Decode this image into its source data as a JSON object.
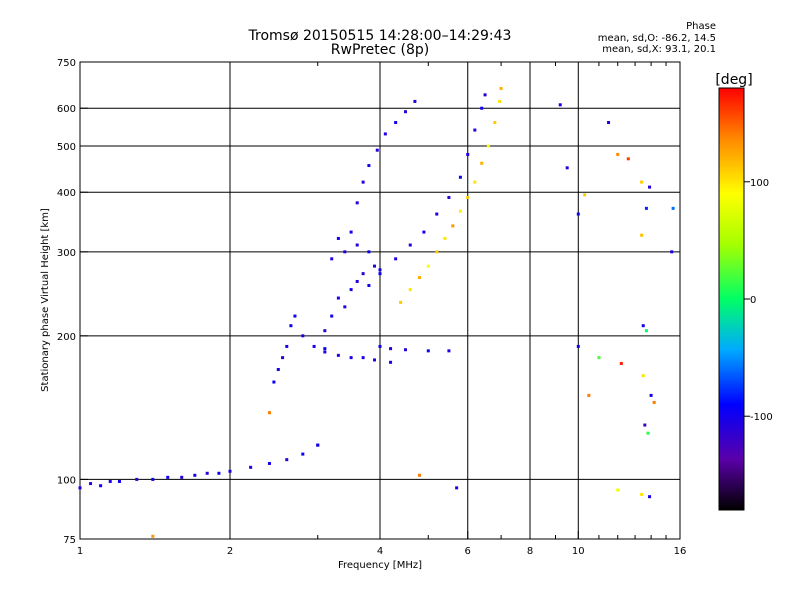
{
  "header": {
    "title_line1": "Tromsø 20150515 14:28:00–14:29:43",
    "title_line2": "RwPretec (8p)",
    "phase_heading": "Phase",
    "phase_line_o": "mean, sd,O: -86.2, 14.5",
    "phase_line_x": "mean, sd,X:  93.1, 20.1"
  },
  "colorbar": {
    "label": "[deg]",
    "ticks": [
      {
        "value": 100,
        "label": "100"
      },
      {
        "value": 0,
        "label": "0"
      },
      {
        "value": -100,
        "label": "-100"
      }
    ],
    "range": [
      -180,
      180
    ]
  },
  "chart_data": {
    "type": "scatter",
    "title": "Tromsø 20150515 14:28:00–14:29:43",
    "subtitle": "RwPretec (8p)",
    "xlabel": "Frequency [MHz]",
    "ylabel": "Stationary phase Virtual Height [km]",
    "x_scale": "log",
    "y_scale": "log",
    "xlim": [
      1,
      16
    ],
    "ylim": [
      75,
      750
    ],
    "x_ticks": [
      {
        "value": 1,
        "label": "1"
      },
      {
        "value": 2,
        "label": "2"
      },
      {
        "value": 4,
        "label": "4"
      },
      {
        "value": 6,
        "label": "6"
      },
      {
        "value": 8,
        "label": "8"
      },
      {
        "value": 10,
        "label": "10"
      },
      {
        "value": 16,
        "label": "16"
      }
    ],
    "x_grid": [
      2,
      4,
      6,
      8,
      10
    ],
    "x_minor_ticks": [
      3,
      5,
      7,
      9,
      11,
      12,
      13,
      14,
      15
    ],
    "y_ticks": [
      {
        "value": 75,
        "label": "75"
      },
      {
        "value": 100,
        "label": "100"
      },
      {
        "value": 200,
        "label": "200"
      },
      {
        "value": 300,
        "label": "300"
      },
      {
        "value": 400,
        "label": "400"
      },
      {
        "value": 500,
        "label": "500"
      },
      {
        "value": 600,
        "label": "600"
      },
      {
        "value": 750,
        "label": "750"
      }
    ],
    "y_grid": [
      100,
      200,
      300,
      400,
      500,
      600
    ],
    "grid": true,
    "color_by": "phase_deg",
    "series": [
      {
        "points": [
          [
            1.0,
            96,
            -100
          ],
          [
            1.05,
            98,
            -110
          ],
          [
            1.1,
            97,
            -95
          ],
          [
            1.15,
            99,
            -105
          ],
          [
            1.2,
            99,
            -100
          ],
          [
            1.3,
            100,
            -110
          ],
          [
            1.4,
            100,
            -95
          ],
          [
            1.5,
            101,
            -100
          ],
          [
            1.6,
            101,
            -105
          ],
          [
            1.7,
            102,
            -100
          ],
          [
            1.8,
            103,
            -110
          ],
          [
            1.9,
            103,
            -95
          ],
          [
            2.0,
            104,
            -100
          ],
          [
            2.2,
            106,
            -105
          ],
          [
            2.4,
            108,
            -100
          ],
          [
            2.6,
            110,
            -110
          ],
          [
            2.8,
            113,
            -95
          ],
          [
            3.0,
            118,
            -100
          ]
        ]
      },
      {
        "points": [
          [
            2.45,
            160,
            -95
          ],
          [
            2.5,
            170,
            -100
          ],
          [
            2.55,
            180,
            -105
          ],
          [
            2.6,
            190,
            -100
          ],
          [
            2.65,
            210,
            -95
          ],
          [
            2.7,
            220,
            -100
          ],
          [
            2.8,
            200,
            -105
          ],
          [
            2.95,
            190,
            -100
          ],
          [
            3.1,
            188,
            -95
          ]
        ]
      },
      {
        "points": [
          [
            3.1,
            205,
            -110
          ],
          [
            3.2,
            220,
            -100
          ],
          [
            3.3,
            240,
            -105
          ],
          [
            3.4,
            230,
            -110
          ],
          [
            3.5,
            250,
            -100
          ],
          [
            3.6,
            260,
            -105
          ],
          [
            3.7,
            270,
            -110
          ],
          [
            3.8,
            255,
            -100
          ],
          [
            3.9,
            280,
            -105
          ],
          [
            4.0,
            275,
            -100
          ],
          [
            3.2,
            290,
            -110
          ],
          [
            3.3,
            320,
            -100
          ],
          [
            3.4,
            300,
            -105
          ],
          [
            3.6,
            310,
            -110
          ],
          [
            3.8,
            300,
            -100
          ]
        ]
      },
      {
        "points": [
          [
            3.1,
            185,
            -105
          ],
          [
            3.3,
            182,
            -110
          ],
          [
            3.5,
            180,
            -100
          ],
          [
            3.7,
            180,
            -105
          ],
          [
            3.9,
            178,
            -110
          ],
          [
            4.2,
            176,
            -100
          ]
        ]
      },
      {
        "points": [
          [
            4.0,
            190,
            -100
          ],
          [
            4.2,
            188,
            -105
          ],
          [
            4.5,
            187,
            -110
          ],
          [
            5.0,
            186,
            -100
          ],
          [
            5.5,
            186,
            -105
          ]
        ]
      },
      {
        "points": [
          [
            3.5,
            330,
            -100
          ],
          [
            3.6,
            380,
            -110
          ],
          [
            3.7,
            420,
            -105
          ],
          [
            3.8,
            455,
            -100
          ],
          [
            3.95,
            490,
            -110
          ],
          [
            4.1,
            530,
            -105
          ],
          [
            4.3,
            560,
            -100
          ],
          [
            4.5,
            590,
            -110
          ],
          [
            4.7,
            620,
            -105
          ]
        ]
      },
      {
        "points": [
          [
            4.0,
            270,
            -100
          ],
          [
            4.3,
            290,
            -105
          ],
          [
            4.6,
            310,
            -110
          ],
          [
            4.9,
            330,
            -100
          ],
          [
            5.2,
            360,
            -105
          ],
          [
            5.5,
            390,
            -110
          ],
          [
            5.8,
            430,
            -100
          ],
          [
            6.0,
            480,
            -105
          ],
          [
            6.2,
            540,
            -110
          ],
          [
            6.4,
            600,
            -100
          ],
          [
            6.5,
            640,
            -105
          ]
        ]
      },
      {
        "points": [
          [
            4.4,
            235,
            110
          ],
          [
            4.6,
            250,
            100
          ],
          [
            4.8,
            265,
            120
          ],
          [
            5.0,
            280,
            90
          ],
          [
            5.2,
            300,
            110
          ],
          [
            5.4,
            320,
            100
          ],
          [
            5.6,
            340,
            130
          ],
          [
            5.8,
            365,
            95
          ],
          [
            6.0,
            390,
            110
          ],
          [
            6.2,
            420,
            100
          ],
          [
            6.4,
            460,
            120
          ],
          [
            6.6,
            500,
            90
          ],
          [
            6.8,
            560,
            110
          ],
          [
            6.95,
            620,
            100
          ],
          [
            7.0,
            660,
            120
          ]
        ]
      },
      {
        "points": [
          [
            9.2,
            610,
            -100
          ],
          [
            9.5,
            450,
            -110
          ],
          [
            10.0,
            360,
            -100
          ],
          [
            10.3,
            395,
            110
          ],
          [
            11.5,
            560,
            -105
          ],
          [
            12.0,
            480,
            135
          ],
          [
            12.6,
            470,
            160
          ],
          [
            13.4,
            420,
            110
          ],
          [
            13.9,
            410,
            -105
          ],
          [
            13.7,
            370,
            -80
          ],
          [
            15.5,
            370,
            -60
          ],
          [
            15.4,
            300,
            -100
          ],
          [
            13.4,
            325,
            115
          ],
          [
            13.5,
            210,
            -100
          ],
          [
            13.7,
            205,
            0
          ],
          [
            11.0,
            180,
            20
          ],
          [
            10.0,
            190,
            -100
          ],
          [
            12.2,
            175,
            170
          ],
          [
            13.5,
            165,
            100
          ],
          [
            14.2,
            145,
            140
          ],
          [
            13.6,
            130,
            -120
          ],
          [
            13.8,
            125,
            10
          ],
          [
            14.0,
            150,
            -100
          ],
          [
            10.5,
            150,
            140
          ],
          [
            12.0,
            95,
            80
          ],
          [
            13.4,
            93,
            100
          ],
          [
            13.9,
            92,
            -100
          ]
        ]
      },
      {
        "points": [
          [
            2.4,
            138,
            140
          ],
          [
            3.0,
            118,
            -100
          ],
          [
            4.8,
            102,
            140
          ],
          [
            5.7,
            96,
            -100
          ],
          [
            1.4,
            76,
            130
          ]
        ]
      }
    ]
  }
}
